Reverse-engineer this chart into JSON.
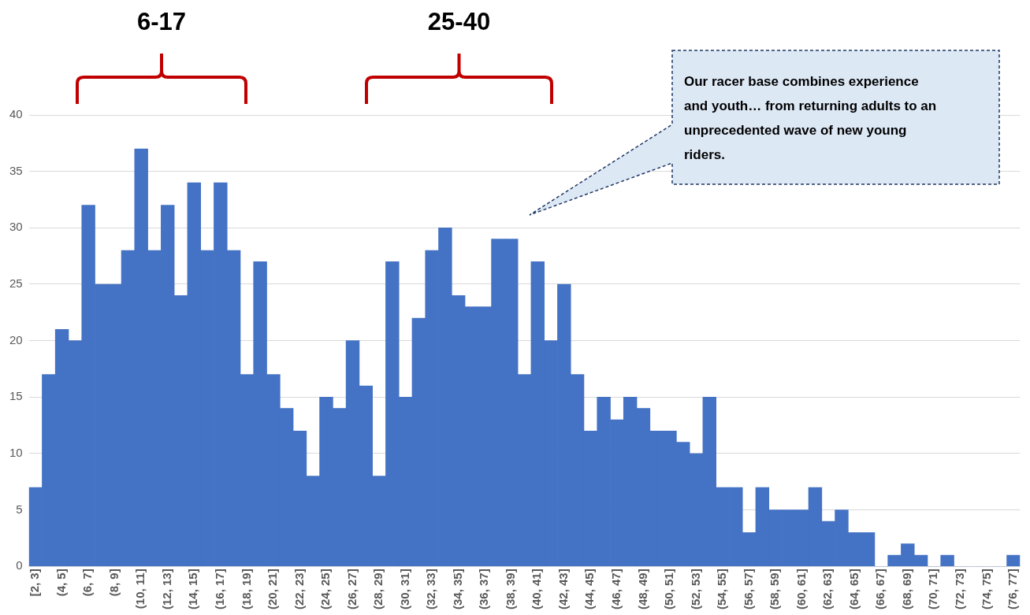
{
  "chart_data": {
    "type": "bar",
    "values": [
      7,
      17,
      21,
      20,
      32,
      25,
      25,
      28,
      37,
      28,
      32,
      24,
      34,
      28,
      34,
      28,
      17,
      27,
      17,
      14,
      12,
      8,
      15,
      14,
      20,
      16,
      8,
      27,
      15,
      22,
      28,
      30,
      24,
      23,
      23,
      29,
      29,
      17,
      27,
      20,
      25,
      17,
      12,
      15,
      13,
      15,
      14,
      12,
      12,
      11,
      10,
      15,
      7,
      7,
      3,
      7,
      5,
      5,
      5,
      7,
      4,
      5,
      3,
      3,
      0,
      1,
      2,
      1,
      0,
      1,
      0,
      0,
      0,
      0,
      1
    ],
    "categories": [
      "[2, 3]",
      null,
      "(4, 5]",
      null,
      "(6, 7]",
      null,
      "(8, 9]",
      null,
      "(10, 11]",
      null,
      "(12, 13]",
      null,
      "(14, 15]",
      null,
      "(16, 17]",
      null,
      "(18, 19]",
      null,
      "(20, 21]",
      null,
      "(22, 23]",
      null,
      "(24, 25]",
      null,
      "(26, 27]",
      null,
      "(28, 29]",
      null,
      "(30, 31]",
      null,
      "(32, 33]",
      null,
      "(34, 35]",
      null,
      "(36, 37]",
      null,
      "(38, 39]",
      null,
      "(40, 41]",
      null,
      "(42, 43]",
      null,
      "(44, 45]",
      null,
      "(46, 47]",
      null,
      "(48, 49]",
      null,
      "(50, 51]",
      null,
      "(52, 53]",
      null,
      "(54, 55]",
      null,
      "(56, 57]",
      null,
      "(58, 59]",
      null,
      "(60, 61]",
      null,
      "(62, 63]",
      null,
      "(64, 65]",
      null,
      "(66, 67]",
      null,
      "(68, 69]",
      null,
      "(70, 71]",
      null,
      "(72, 73]",
      null,
      "(74, 75]",
      null,
      "(76, 77]"
    ],
    "color": "#4472c4",
    "ylim": [
      0,
      40
    ],
    "yticks": [
      0,
      5,
      10,
      15,
      20,
      25,
      30,
      35,
      40
    ],
    "grid": "y",
    "legend": false,
    "annotations": [
      "6-17",
      "25-40",
      "Our racer base combines experience and youth… from returning adults to an unprecedented wave of new young riders."
    ]
  }
}
